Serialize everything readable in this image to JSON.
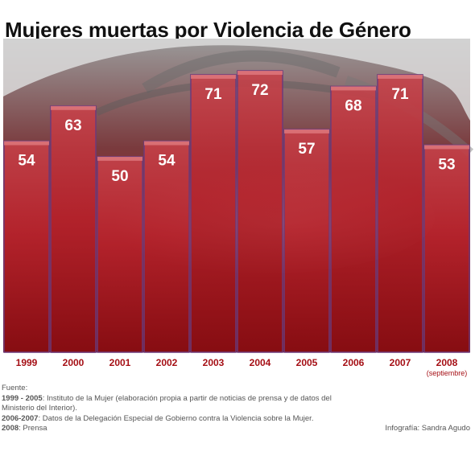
{
  "title": "Mujeres muertas por Violencia de Género",
  "chart_data": {
    "type": "bar",
    "title": "Mujeres muertas por Violencia de Género",
    "categories": [
      "1999",
      "2000",
      "2001",
      "2002",
      "2003",
      "2004",
      "2005",
      "2006",
      "2007",
      "2008"
    ],
    "category_notes": [
      "",
      "",
      "",
      "",
      "",
      "",
      "",
      "",
      "",
      "(septiembre)"
    ],
    "values": [
      54,
      63,
      50,
      54,
      71,
      72,
      57,
      68,
      71,
      53
    ],
    "data_labels": true,
    "grid": false,
    "legend": "none",
    "bar_color": "#b5222b",
    "label_color": "#a50f15"
  },
  "source": {
    "heading": "Fuente:",
    "lines": [
      {
        "label": "1999 - 2005",
        "text": ": Instituto de la Mujer (elaboración propia a partir de noticias de prensa y de datos del Ministerio del Interior)."
      },
      {
        "label": "2006-2007",
        "text": ": Datos de la Delegación Especial de Gobierno contra la Violencia sobre la Mujer."
      },
      {
        "label": "2008",
        "text": ": Prensa"
      }
    ]
  },
  "credit": "Infografía:  Sandra Agudo"
}
